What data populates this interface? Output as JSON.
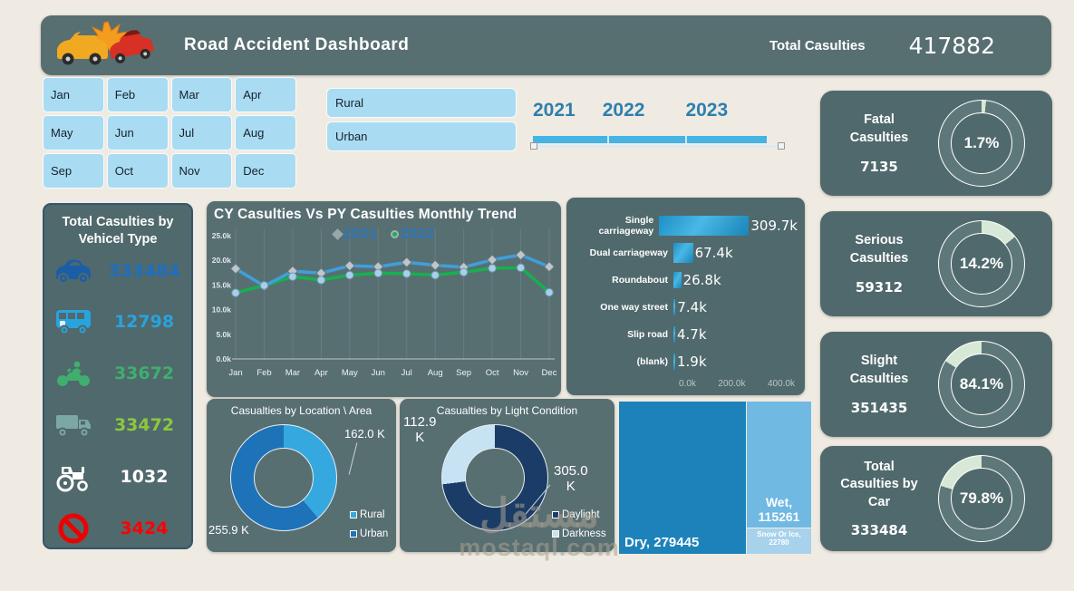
{
  "header": {
    "title": "Road Accident Dashboard",
    "total_label": "Total Casulties",
    "total_value": "417882"
  },
  "filters": {
    "months": [
      "Jan",
      "Feb",
      "Mar",
      "Apr",
      "May",
      "Jun",
      "Jul",
      "Aug",
      "Sep",
      "Oct",
      "Nov",
      "Dec"
    ],
    "areas": [
      "Rural",
      "Urban"
    ],
    "years": [
      "2021",
      "2022",
      "2023"
    ]
  },
  "panels": {
    "vehicle_title": "Total Casulties by Vehicel Type"
  },
  "vehicles": [
    {
      "icon": "car-icon",
      "icon_color": "#1b5ea8",
      "value": "333484",
      "value_color": "#1d6fc0"
    },
    {
      "icon": "bus-icon",
      "icon_color": "#29a3dd",
      "value": "12798",
      "value_color": "#29a3dd"
    },
    {
      "icon": "motorcycle-icon",
      "icon_color": "#3fae6e",
      "value": "33672",
      "value_color": "#3fae6e"
    },
    {
      "icon": "truck-icon",
      "icon_color": "#7ba8a5",
      "value": "33472",
      "value_color": "#8dc63f"
    },
    {
      "icon": "tractor-icon",
      "icon_color": "#ffffff",
      "value": "1032",
      "value_color": "#ffffff"
    },
    {
      "icon": "no-entry-icon",
      "icon_color": "#ee0000",
      "value": "3424",
      "value_color": "#ff0000"
    }
  ],
  "kpis": [
    {
      "title": "Fatal\nCasulties",
      "value": "7135",
      "pct": "1.7%",
      "pct_num": 1.7,
      "green_arc": [
        0,
        6.1
      ]
    },
    {
      "title": "Serious\nCasulties",
      "value": "59312",
      "pct": "14.2%",
      "pct_num": 14.2,
      "green_arc": [
        0,
        51.1
      ]
    },
    {
      "title": "Slight\nCasulties",
      "value": "351435",
      "pct": "84.1%",
      "pct_num": 84.1,
      "green_arc": [
        302.8,
        360
      ]
    },
    {
      "title": "Total\nCasulties by\nCar",
      "value": "333484",
      "pct": "79.8%",
      "pct_num": 79.8,
      "green_arc": [
        287.3,
        360
      ]
    }
  ],
  "kpi_colors": {
    "green": "#d7e9d6",
    "dark": "#5e7879"
  },
  "chart_data": [
    {
      "type": "line",
      "title": "CY Casulties Vs PY Casulties Monthly Trend",
      "categories": [
        "Jan",
        "Feb",
        "Mar",
        "Apr",
        "May",
        "Jun",
        "Jul",
        "Aug",
        "Sep",
        "Oct",
        "Nov",
        "Dec"
      ],
      "series": [
        {
          "name": "2021",
          "marker": "diamond",
          "line_color": "#3f9fdc",
          "marker_fill": "#bfc6cb",
          "marker_stroke": "#66757d",
          "values": [
            18300,
            14800,
            17800,
            17400,
            18900,
            18700,
            19600,
            19000,
            18600,
            20100,
            21100,
            18700
          ]
        },
        {
          "name": "2022",
          "marker": "circle",
          "line_color": "#17b04f",
          "marker_fill": "#a9cfe9",
          "marker_stroke": "#6d97b5",
          "values": [
            13400,
            14900,
            16700,
            16000,
            17000,
            17400,
            17300,
            17000,
            17600,
            18400,
            18500,
            13500
          ]
        }
      ],
      "ylim": [
        0,
        25000
      ],
      "yticks": [
        {
          "v": 25000,
          "label": "25.0k"
        },
        {
          "v": 20000,
          "label": "20.0k"
        },
        {
          "v": 15000,
          "label": "15.0k"
        },
        {
          "v": 10000,
          "label": "10.0k"
        },
        {
          "v": 5000,
          "label": "5.0k"
        },
        {
          "v": 0,
          "label": "0.0k"
        }
      ],
      "legend_position": "top-center",
      "grid": "vertical"
    },
    {
      "type": "bar",
      "orientation": "horizontal",
      "categories": [
        "Single carriageway",
        "Dual carriageway",
        "Roundabout",
        "One way street",
        "Slip road",
        "(blank)"
      ],
      "values": [
        309.7,
        67.4,
        26.8,
        7.4,
        4.7,
        1.9
      ],
      "value_labels": [
        "309.7k",
        "67.4k",
        "26.8k",
        "7.4k",
        "4.7k",
        "1.9k"
      ],
      "xlim": [
        0,
        400
      ],
      "xticks": [
        "0.0k",
        "200.0k",
        "400.0k"
      ]
    },
    {
      "type": "pie",
      "title": "Casualties by Location \\ Area",
      "categories": [
        "Rural",
        "Urban"
      ],
      "values": [
        162.0,
        255.9
      ],
      "slice_labels": [
        "162.0 K",
        "255.9 K"
      ],
      "colors": [
        "#35a8e0",
        "#1e72b8"
      ],
      "legend_position": "bottom-right"
    },
    {
      "type": "pie",
      "title": "Casualties by Light Condition",
      "categories": [
        "Daylight",
        "Darkness"
      ],
      "values": [
        305.0,
        112.9
      ],
      "slice_labels": [
        "305.0\nK",
        "112.9\nK"
      ],
      "colors": [
        "#1a3c66",
        "#c7e2f2"
      ],
      "legend_position": "bottom-right"
    },
    {
      "type": "treemap",
      "categories": [
        "Dry",
        "Wet",
        "Snow Or Ice"
      ],
      "values": [
        279445,
        115261,
        22780
      ],
      "display": [
        "Dry, 279445",
        "Wet,\n115261",
        "Snow Or Ice,\n22780"
      ],
      "colors": [
        "#1d82ba",
        "#6fb9e3",
        "#a8d2ec"
      ]
    }
  ],
  "watermark": {
    "logo": "مستقل",
    "domain": "mostaql.com"
  }
}
